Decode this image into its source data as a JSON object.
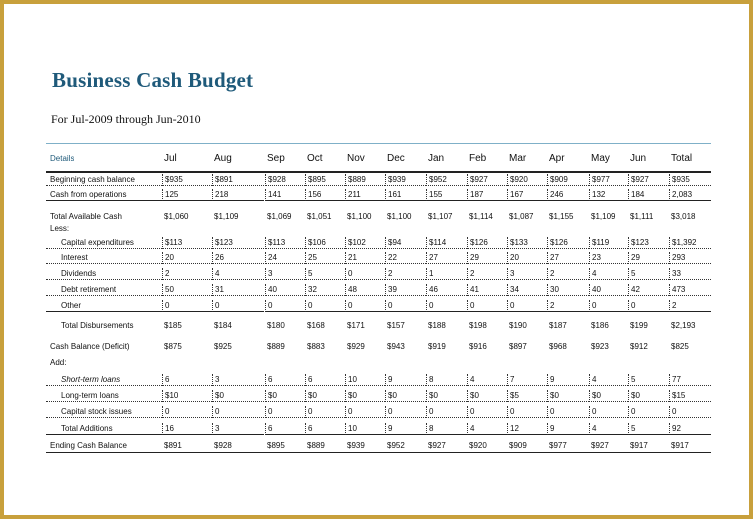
{
  "title": "Business Cash Budget",
  "subtitle": "For Jul-2009 through Jun-2010",
  "columns": [
    "Jul",
    "Aug",
    "Sep",
    "Oct",
    "Nov",
    "Dec",
    "Jan",
    "Feb",
    "Mar",
    "Apr",
    "May",
    "Jun",
    "Total"
  ],
  "header_label": "Details",
  "rows": [
    {
      "label": "Beginning cash balance",
      "values": [
        "$935",
        "$891",
        "$928",
        "$895",
        "$889",
        "$939",
        "$952",
        "$927",
        "$920",
        "$909",
        "$977",
        "$927",
        "$935"
      ]
    },
    {
      "label": "Cash from operations",
      "values": [
        "125",
        "218",
        "141",
        "156",
        "211",
        "161",
        "155",
        "187",
        "167",
        "246",
        "132",
        "184",
        "2,083"
      ]
    },
    {
      "label": "Total Available Cash",
      "values": [
        "$1,060",
        "$1,109",
        "$1,069",
        "$1,051",
        "$1,100",
        "$1,100",
        "$1,107",
        "$1,114",
        "$1,087",
        "$1,155",
        "$1,109",
        "$1,111",
        "$3,018"
      ]
    },
    {
      "label": "Less:",
      "values": []
    },
    {
      "label": "Capital expenditures",
      "values": [
        "$113",
        "$123",
        "$113",
        "$106",
        "$102",
        "$94",
        "$114",
        "$126",
        "$133",
        "$126",
        "$119",
        "$123",
        "$1,392"
      ]
    },
    {
      "label": "Interest",
      "values": [
        "20",
        "26",
        "24",
        "25",
        "21",
        "22",
        "27",
        "29",
        "20",
        "27",
        "23",
        "29",
        "293"
      ]
    },
    {
      "label": "Dividends",
      "values": [
        "2",
        "4",
        "3",
        "5",
        "0",
        "2",
        "1",
        "2",
        "3",
        "2",
        "4",
        "5",
        "33"
      ]
    },
    {
      "label": "Debt retirement",
      "values": [
        "50",
        "31",
        "40",
        "32",
        "48",
        "39",
        "46",
        "41",
        "34",
        "30",
        "40",
        "42",
        "473"
      ]
    },
    {
      "label": "Other",
      "values": [
        "0",
        "0",
        "0",
        "0",
        "0",
        "0",
        "0",
        "0",
        "0",
        "2",
        "0",
        "0",
        "2"
      ]
    },
    {
      "label": "Total Disbursements",
      "values": [
        "$185",
        "$184",
        "$180",
        "$168",
        "$171",
        "$157",
        "$188",
        "$198",
        "$190",
        "$187",
        "$186",
        "$199",
        "$2,193"
      ]
    },
    {
      "label": "Cash Balance (Deficit)",
      "values": [
        "$875",
        "$925",
        "$889",
        "$883",
        "$929",
        "$943",
        "$919",
        "$916",
        "$897",
        "$968",
        "$923",
        "$912",
        "$825"
      ]
    },
    {
      "label": "Add:",
      "values": []
    },
    {
      "label": "Short-term loans",
      "values": [
        "6",
        "3",
        "6",
        "6",
        "10",
        "9",
        "8",
        "4",
        "7",
        "9",
        "4",
        "5",
        "77"
      ]
    },
    {
      "label": "Long-term loans",
      "values": [
        "$10",
        "$0",
        "$0",
        "$0",
        "$0",
        "$0",
        "$0",
        "$0",
        "$5",
        "$0",
        "$0",
        "$0",
        "$15"
      ]
    },
    {
      "label": "Capital stock issues",
      "values": [
        "0",
        "0",
        "0",
        "0",
        "0",
        "0",
        "0",
        "0",
        "0",
        "0",
        "0",
        "0",
        "0"
      ]
    },
    {
      "label": "Total Additions",
      "values": [
        "16",
        "3",
        "6",
        "6",
        "10",
        "9",
        "8",
        "4",
        "12",
        "9",
        "4",
        "5",
        "92"
      ]
    },
    {
      "label": "Ending Cash Balance",
      "values": [
        "$891",
        "$928",
        "$895",
        "$889",
        "$939",
        "$952",
        "$927",
        "$920",
        "$909",
        "$977",
        "$927",
        "$917",
        "$917"
      ]
    }
  ]
}
